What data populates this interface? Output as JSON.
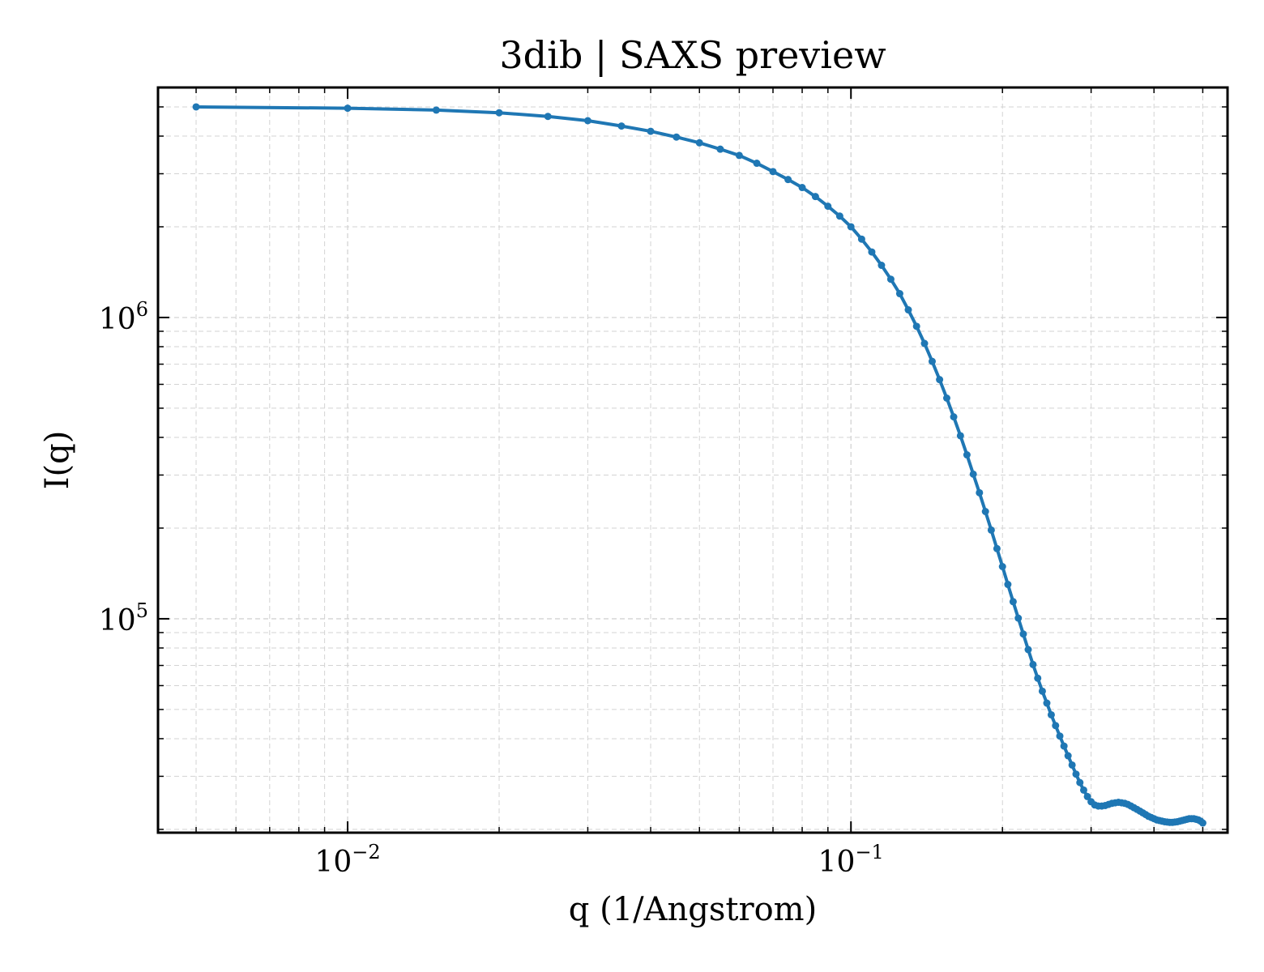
{
  "colors": {
    "series": "#1f77b4",
    "grid": "#d3d3d3",
    "axis": "#000000",
    "background": "#ffffff"
  },
  "chart_data": {
    "type": "line",
    "title": "3dib | SAXS preview",
    "xlabel": "q (1/Angstrom)",
    "ylabel": "I(q)",
    "xscale": "log",
    "yscale": "log",
    "xlim": [
      0.0042,
      0.56
    ],
    "ylim": [
      19500,
      5800000
    ],
    "grid": true,
    "markers": true,
    "x_ticks": [
      {
        "base": "10",
        "exp": "−2",
        "value": 0.01
      },
      {
        "base": "10",
        "exp": "−1",
        "value": 0.1
      }
    ],
    "y_ticks": [
      {
        "base": "10",
        "exp": "5",
        "value": 100000
      },
      {
        "base": "10",
        "exp": "6",
        "value": 1000000
      }
    ],
    "series": [
      {
        "x": [
          0.005,
          0.01,
          0.015,
          0.02,
          0.025,
          0.03,
          0.035,
          0.04,
          0.045,
          0.05,
          0.055,
          0.06,
          0.065,
          0.07,
          0.075,
          0.08,
          0.085,
          0.09,
          0.095,
          0.1,
          0.105,
          0.11,
          0.115,
          0.12,
          0.125,
          0.13,
          0.135,
          0.14,
          0.145,
          0.15,
          0.155,
          0.16,
          0.165,
          0.17,
          0.175,
          0.18,
          0.185,
          0.19,
          0.195,
          0.2,
          0.205,
          0.21,
          0.215,
          0.22,
          0.225,
          0.23,
          0.235,
          0.24,
          0.245,
          0.25,
          0.255,
          0.26,
          0.265,
          0.27,
          0.275,
          0.28,
          0.285,
          0.29,
          0.295,
          0.3,
          0.305,
          0.31,
          0.315,
          0.32,
          0.325,
          0.33,
          0.335,
          0.34,
          0.345,
          0.35,
          0.355,
          0.36,
          0.365,
          0.37,
          0.375,
          0.38,
          0.385,
          0.39,
          0.395,
          0.4,
          0.405,
          0.41,
          0.415,
          0.42,
          0.425,
          0.43,
          0.435,
          0.44,
          0.445,
          0.45,
          0.455,
          0.46,
          0.465,
          0.47,
          0.475,
          0.48,
          0.485,
          0.49,
          0.495,
          0.5
        ],
        "y": [
          5000000,
          4950000,
          4880000,
          4780000,
          4650000,
          4500000,
          4320000,
          4150000,
          3970000,
          3800000,
          3620000,
          3450000,
          3250000,
          3050000,
          2870000,
          2700000,
          2520000,
          2340000,
          2170000,
          2000000,
          1820000,
          1650000,
          1490000,
          1340000,
          1200000,
          1060000,
          935000,
          820000,
          715000,
          622000,
          540000,
          468000,
          405000,
          350000,
          302000,
          262000,
          227000,
          197000,
          171000,
          149000,
          130000,
          114000,
          100500,
          89000,
          79000,
          70500,
          63500,
          57500,
          52500,
          48000,
          44200,
          40800,
          37800,
          35100,
          32700,
          30500,
          28600,
          27000,
          25700,
          24700,
          24100,
          23900,
          23900,
          24000,
          24200,
          24400,
          24500,
          24600,
          24500,
          24400,
          24200,
          23900,
          23600,
          23300,
          23000,
          22700,
          22400,
          22100,
          21900,
          21700,
          21500,
          21400,
          21300,
          21200,
          21150,
          21100,
          21100,
          21150,
          21200,
          21300,
          21400,
          21500,
          21600,
          21700,
          21700,
          21700,
          21600,
          21500,
          21300,
          21000
        ]
      }
    ]
  }
}
